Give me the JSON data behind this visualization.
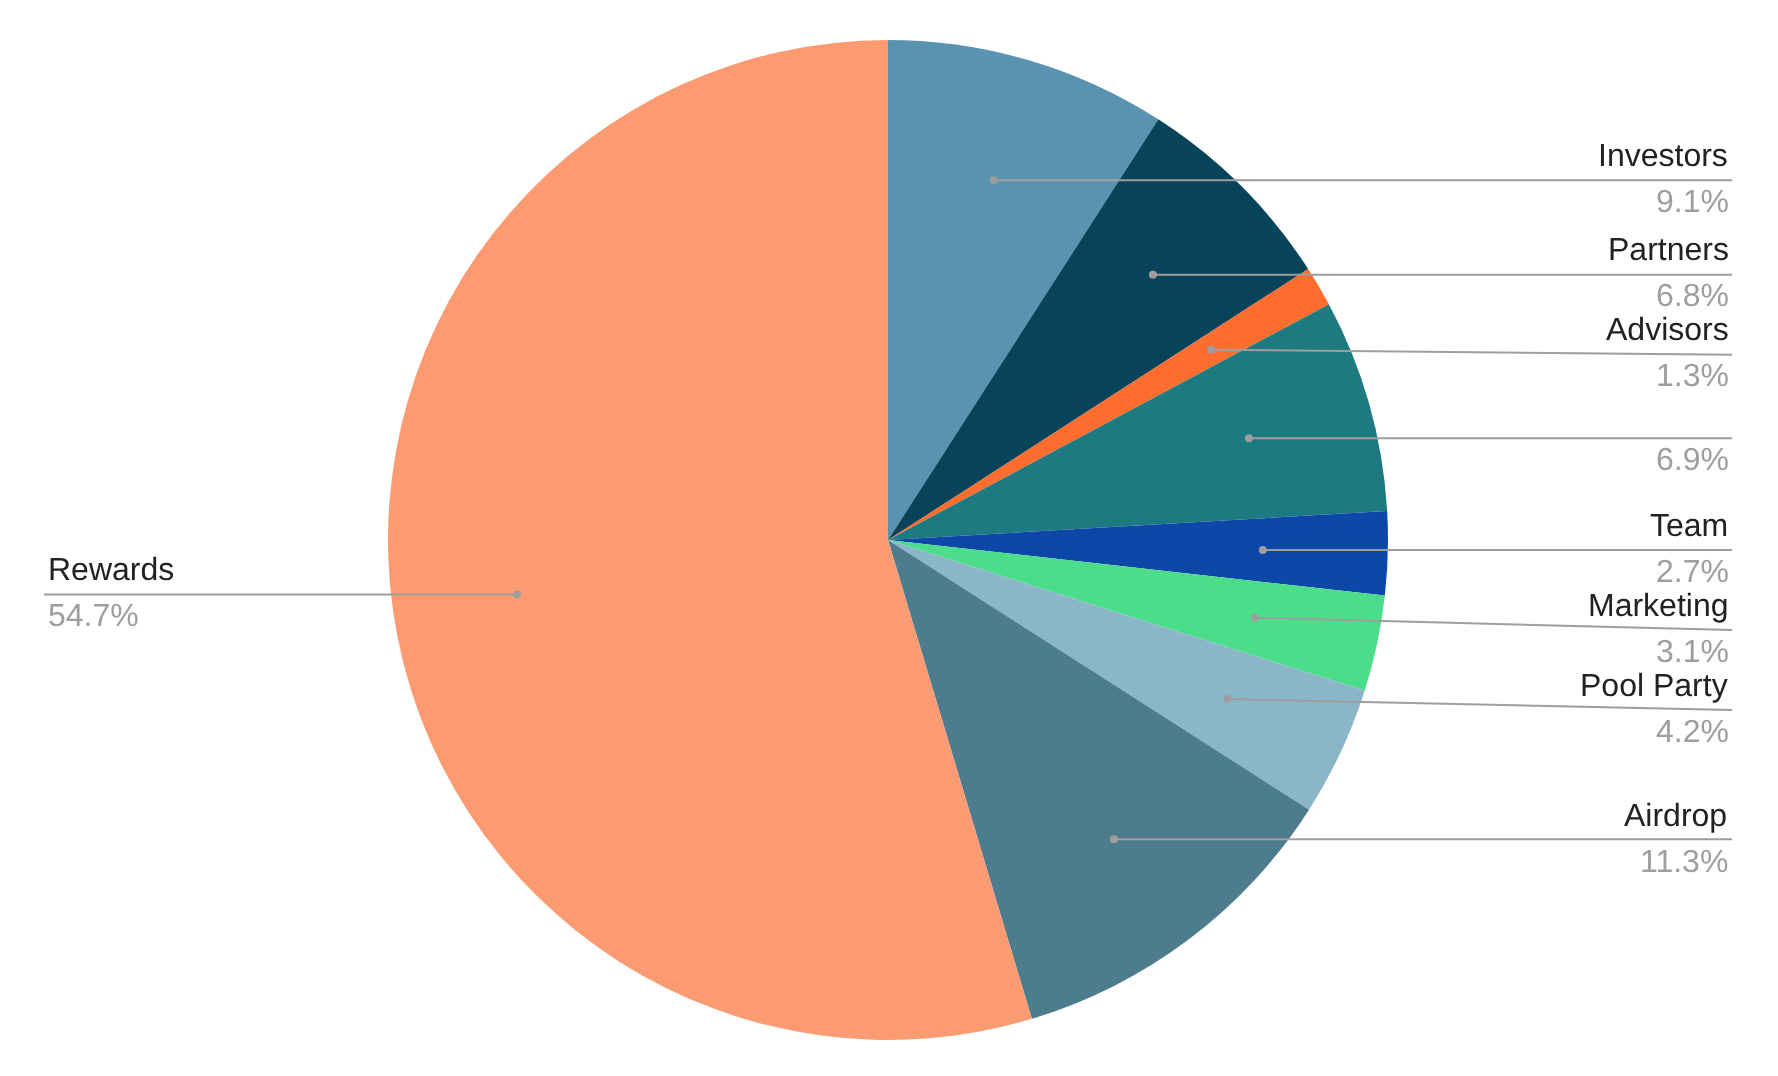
{
  "chart_data": {
    "type": "pie",
    "categories": [
      "Investors",
      "Partners",
      "Advisors",
      null,
      "Team",
      "Marketing",
      "Pool Party",
      "Airdrop",
      "Rewards"
    ],
    "values": [
      9.1,
      6.8,
      1.3,
      6.9,
      2.7,
      3.1,
      4.2,
      11.3,
      54.7
    ],
    "value_labels": [
      "9.1%",
      "6.8%",
      "1.3%",
      "6.9%",
      "2.7%",
      "3.1%",
      "4.2%",
      "11.3%",
      "54.7%"
    ],
    "colors": [
      "#5a93b0",
      "#07435b",
      "#ff6d2e",
      "#1d7a80",
      "#0d47a8",
      "#4cdd8b",
      "#8ab6c7",
      "#4d7c8d",
      "#fc9b72"
    ]
  }
}
